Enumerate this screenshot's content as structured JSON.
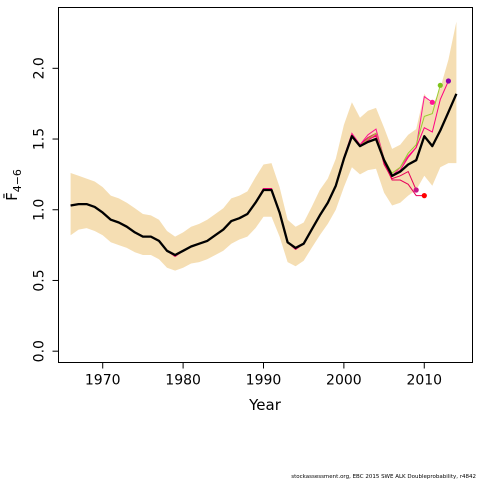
{
  "chart_data": {
    "type": "line",
    "xlabel": "Year",
    "ylabel": "F̄",
    "ylabel_subscript": "4−6",
    "xlim": [
      1964.5,
      2016.0
    ],
    "ylim": [
      -0.08,
      2.43
    ],
    "xticks": [
      1970,
      1980,
      1990,
      2000,
      2010
    ],
    "yticks": [
      0.0,
      0.5,
      1.0,
      1.5,
      2.0
    ],
    "ytick_labels": [
      "0.0",
      "0.5",
      "1.0",
      "1.5",
      "2.0"
    ],
    "xtick_labels": [
      "1970",
      "1980",
      "1990",
      "2000",
      "2010"
    ],
    "grid": false,
    "x": [
      1966,
      1967,
      1968,
      1969,
      1970,
      1971,
      1972,
      1973,
      1974,
      1975,
      1976,
      1977,
      1978,
      1979,
      1980,
      1981,
      1982,
      1983,
      1984,
      1985,
      1986,
      1987,
      1988,
      1989,
      1990,
      1991,
      1992,
      1993,
      1994,
      1995,
      1996,
      1997,
      1998,
      1999,
      2000,
      2001,
      2002,
      2003,
      2004,
      2005,
      2006,
      2007,
      2008,
      2009,
      2010,
      2011,
      2012,
      2013,
      2014
    ],
    "series": [
      {
        "name": "",
        "role": "estimate",
        "color": "#000000",
        "values": [
          1.03,
          1.04,
          1.04,
          1.02,
          0.98,
          0.93,
          0.91,
          0.88,
          0.84,
          0.81,
          0.81,
          0.78,
          0.71,
          0.68,
          0.71,
          0.74,
          0.76,
          0.78,
          0.82,
          0.86,
          0.92,
          0.94,
          0.97,
          1.05,
          1.14,
          1.14,
          0.98,
          0.77,
          0.73,
          0.76,
          0.86,
          0.96,
          1.05,
          1.17,
          1.36,
          1.52,
          1.45,
          1.48,
          1.5,
          1.35,
          1.24,
          1.27,
          1.32,
          1.35,
          1.52,
          1.45,
          1.56,
          1.69,
          1.82
        ]
      }
    ],
    "band": {
      "color": "#f5deb3",
      "lower": [
        0.82,
        0.86,
        0.87,
        0.85,
        0.82,
        0.77,
        0.75,
        0.73,
        0.7,
        0.68,
        0.68,
        0.65,
        0.59,
        0.57,
        0.59,
        0.62,
        0.63,
        0.65,
        0.68,
        0.71,
        0.76,
        0.79,
        0.81,
        0.87,
        0.95,
        0.95,
        0.81,
        0.63,
        0.6,
        0.64,
        0.73,
        0.82,
        0.9,
        1.0,
        1.16,
        1.3,
        1.25,
        1.28,
        1.29,
        1.12,
        1.03,
        1.05,
        1.1,
        1.14,
        1.24,
        1.17,
        1.3,
        1.33,
        1.33
      ],
      "upper": [
        1.26,
        1.24,
        1.22,
        1.2,
        1.16,
        1.1,
        1.08,
        1.05,
        1.01,
        0.97,
        0.96,
        0.93,
        0.85,
        0.81,
        0.84,
        0.88,
        0.9,
        0.93,
        0.97,
        1.01,
        1.08,
        1.1,
        1.13,
        1.23,
        1.32,
        1.33,
        1.16,
        0.93,
        0.88,
        0.91,
        1.02,
        1.14,
        1.22,
        1.36,
        1.6,
        1.76,
        1.65,
        1.7,
        1.72,
        1.58,
        1.43,
        1.46,
        1.53,
        1.57,
        1.82,
        1.73,
        1.86,
        2.06,
        2.33
      ]
    },
    "retro": [
      {
        "color": "#e8005a",
        "x": [
          1966,
          1967,
          1968,
          1969,
          1970,
          1971,
          1972,
          1973,
          1974,
          1975,
          1976,
          1977,
          1978,
          1979,
          1980,
          1981,
          1982,
          1983,
          1984,
          1985,
          1986,
          1987,
          1988,
          1989,
          1990,
          1991,
          1992,
          1993,
          1994,
          1995,
          1996,
          1997,
          1998,
          1999,
          2000,
          2001,
          2002,
          2003,
          2004,
          2005,
          2006,
          2007,
          2008,
          2009,
          2010
        ],
        "values": [
          1.03,
          1.04,
          1.04,
          1.02,
          0.98,
          0.93,
          0.91,
          0.88,
          0.84,
          0.81,
          0.81,
          0.78,
          0.71,
          0.67,
          0.71,
          0.74,
          0.76,
          0.78,
          0.82,
          0.86,
          0.92,
          0.94,
          0.97,
          1.05,
          1.15,
          1.15,
          0.98,
          0.77,
          0.72,
          0.76,
          0.86,
          0.96,
          1.05,
          1.17,
          1.37,
          1.53,
          1.45,
          1.5,
          1.52,
          1.33,
          1.21,
          1.21,
          1.18,
          1.1,
          1.1
        ],
        "end_color": "#ff0000"
      },
      {
        "color": "#e8005a",
        "x": [
          1966,
          1967,
          1968,
          1969,
          1970,
          1971,
          1972,
          1973,
          1974,
          1975,
          1976,
          1977,
          1978,
          1979,
          1980,
          1981,
          1982,
          1983,
          1984,
          1985,
          1986,
          1987,
          1988,
          1989,
          1990,
          1991,
          1992,
          1993,
          1994,
          1995,
          1996,
          1997,
          1998,
          1999,
          2000,
          2001,
          2002,
          2003,
          2004,
          2005,
          2006,
          2007,
          2008,
          2009
        ],
        "values": [
          1.03,
          1.04,
          1.04,
          1.02,
          0.98,
          0.93,
          0.91,
          0.88,
          0.84,
          0.81,
          0.81,
          0.78,
          0.71,
          0.67,
          0.71,
          0.74,
          0.76,
          0.78,
          0.82,
          0.86,
          0.92,
          0.94,
          0.97,
          1.05,
          1.15,
          1.15,
          0.98,
          0.77,
          0.72,
          0.76,
          0.86,
          0.96,
          1.05,
          1.17,
          1.37,
          1.53,
          1.46,
          1.51,
          1.54,
          1.32,
          1.22,
          1.24,
          1.27,
          1.14
        ],
        "end_color": "#c71585"
      },
      {
        "color": "#ff1493",
        "x": [
          1966,
          1967,
          1968,
          1969,
          1970,
          1971,
          1972,
          1973,
          1974,
          1975,
          1976,
          1977,
          1978,
          1979,
          1980,
          1981,
          1982,
          1983,
          1984,
          1985,
          1986,
          1987,
          1988,
          1989,
          1990,
          1991,
          1992,
          1993,
          1994,
          1995,
          1996,
          1997,
          1998,
          1999,
          2000,
          2001,
          2002,
          2003,
          2004,
          2005,
          2006,
          2007,
          2008,
          2009,
          2010,
          2011
        ],
        "values": [
          1.03,
          1.04,
          1.04,
          1.02,
          0.98,
          0.93,
          0.91,
          0.88,
          0.84,
          0.81,
          0.81,
          0.78,
          0.71,
          0.67,
          0.71,
          0.74,
          0.76,
          0.78,
          0.82,
          0.86,
          0.92,
          0.94,
          0.97,
          1.05,
          1.15,
          1.15,
          0.98,
          0.77,
          0.72,
          0.76,
          0.86,
          0.96,
          1.05,
          1.17,
          1.37,
          1.54,
          1.46,
          1.53,
          1.57,
          1.36,
          1.24,
          1.3,
          1.38,
          1.44,
          1.8,
          1.76
        ],
        "end_color": "#ff1493"
      },
      {
        "color": "#9acd32",
        "x": [
          1966,
          1967,
          1968,
          1969,
          1970,
          1971,
          1972,
          1973,
          1974,
          1975,
          1976,
          1977,
          1978,
          1979,
          1980,
          1981,
          1982,
          1983,
          1984,
          1985,
          1986,
          1987,
          1988,
          1989,
          1990,
          1991,
          1992,
          1993,
          1994,
          1995,
          1996,
          1997,
          1998,
          1999,
          2000,
          2001,
          2002,
          2003,
          2004,
          2005,
          2006,
          2007,
          2008,
          2009,
          2010,
          2011,
          2012
        ],
        "values": [
          1.03,
          1.04,
          1.04,
          1.02,
          0.98,
          0.93,
          0.91,
          0.88,
          0.84,
          0.81,
          0.81,
          0.78,
          0.71,
          0.67,
          0.71,
          0.74,
          0.76,
          0.78,
          0.82,
          0.86,
          0.92,
          0.94,
          0.97,
          1.05,
          1.15,
          1.15,
          0.98,
          0.77,
          0.72,
          0.76,
          0.86,
          0.96,
          1.05,
          1.17,
          1.37,
          1.53,
          1.45,
          1.5,
          1.54,
          1.36,
          1.26,
          1.3,
          1.4,
          1.46,
          1.66,
          1.68,
          1.88
        ],
        "end_color": "#7fc41c"
      },
      {
        "color": "#ff0080",
        "x": [
          1966,
          1967,
          1968,
          1969,
          1970,
          1971,
          1972,
          1973,
          1974,
          1975,
          1976,
          1977,
          1978,
          1979,
          1980,
          1981,
          1982,
          1983,
          1984,
          1985,
          1986,
          1987,
          1988,
          1989,
          1990,
          1991,
          1992,
          1993,
          1994,
          1995,
          1996,
          1997,
          1998,
          1999,
          2000,
          2001,
          2002,
          2003,
          2004,
          2005,
          2006,
          2007,
          2008,
          2009,
          2010,
          2011,
          2012,
          2013
        ],
        "values": [
          1.03,
          1.04,
          1.04,
          1.02,
          0.98,
          0.93,
          0.91,
          0.88,
          0.84,
          0.81,
          0.81,
          0.78,
          0.71,
          0.67,
          0.71,
          0.74,
          0.76,
          0.78,
          0.82,
          0.86,
          0.92,
          0.94,
          0.97,
          1.05,
          1.15,
          1.15,
          0.98,
          0.77,
          0.72,
          0.76,
          0.86,
          0.96,
          1.05,
          1.17,
          1.37,
          1.53,
          1.45,
          1.49,
          1.53,
          1.34,
          1.24,
          1.28,
          1.37,
          1.44,
          1.58,
          1.55,
          1.78,
          1.91
        ],
        "end_color": "#8b00b0"
      }
    ]
  },
  "footer": {
    "credit": "stockassessment.org, EBC 2015 SWE ALK Doubleprobability, r4842"
  }
}
